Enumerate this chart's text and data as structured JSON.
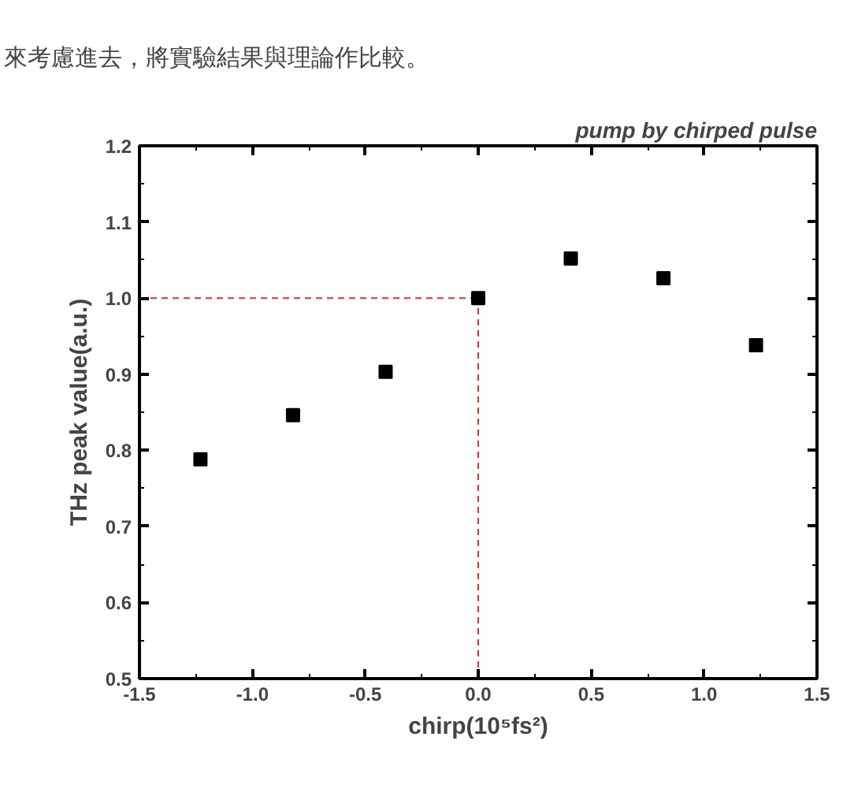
{
  "chart_data": {
    "type": "scatter",
    "title": "pump by chirped pulse",
    "xlabel": "chirp(10⁵fs²)",
    "ylabel": "THz peak value(a.u.)",
    "annotations": [
      "來考慮進去，將實驗結果與理論作比較。"
    ],
    "x": [
      -1.23,
      -0.82,
      -0.41,
      0.0,
      0.41,
      0.82,
      1.23
    ],
    "series": [
      {
        "color": "#000000",
        "values": [
          0.788,
          0.846,
          0.903,
          1.0,
          1.052,
          1.026,
          0.938
        ],
        "errors": [
          0.007,
          0.007,
          0.007,
          0.007,
          0.007,
          0.007,
          0.007
        ]
      }
    ],
    "xlim": [
      -1.5,
      1.5
    ],
    "ylim": [
      0.5,
      1.2
    ],
    "xticks": [
      {
        "value": -1.5,
        "label": "-1.5"
      },
      {
        "value": -1.0,
        "label": "-1.0"
      },
      {
        "value": -0.5,
        "label": "-0.5"
      },
      {
        "value": 0.0,
        "label": "0.0"
      },
      {
        "value": 0.5,
        "label": "0.5"
      },
      {
        "value": 1.0,
        "label": "1.0"
      },
      {
        "value": 1.5,
        "label": "1.5"
      }
    ],
    "yticks": [
      0.5,
      0.6,
      0.7,
      0.8,
      0.9,
      {
        "value": 1.0,
        "label": "1.0"
      },
      1.1,
      1.2
    ],
    "ref_lines": [
      {
        "axis": "y",
        "value": 1.0,
        "color": "#e0312a",
        "line_style": "dashed"
      },
      {
        "axis": "x",
        "value": 0.0,
        "color": "#e0312a",
        "line_style": "dashed"
      }
    ],
    "marker": "square",
    "grid": false
  }
}
